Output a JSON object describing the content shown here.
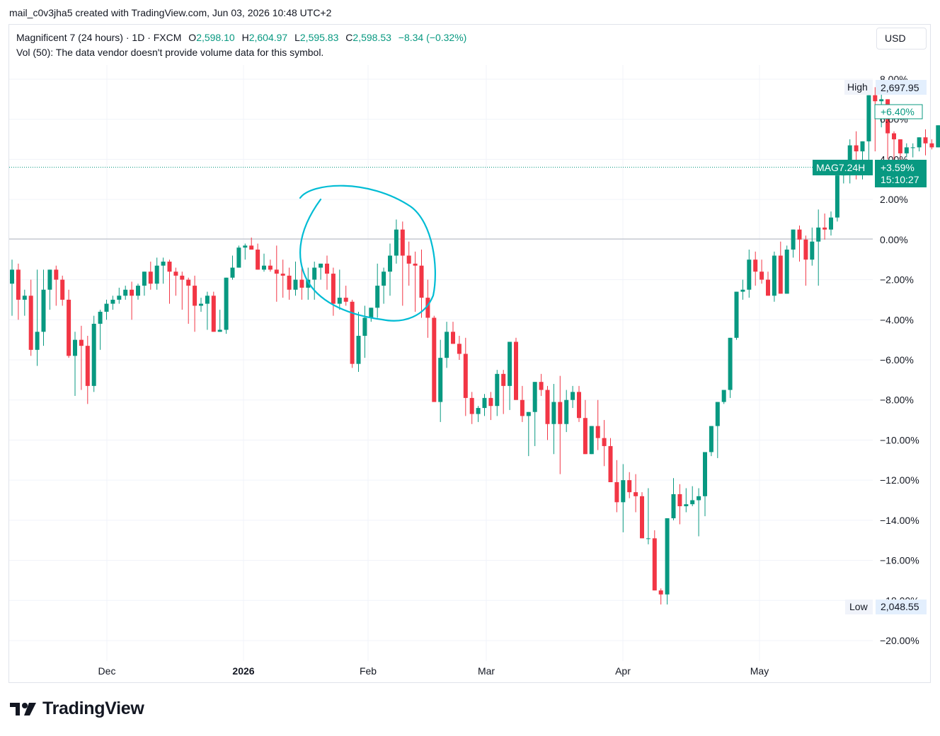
{
  "caption": "mail_c0v3jha5 created with TradingView.com, Jun 03, 2026 10:48 UTC+2",
  "symbol": {
    "title": "Magnificent 7 (24 hours) · 1D · FXCM",
    "open_key": "O",
    "open": "2,598.10",
    "high_key": "H",
    "high": "2,604.97",
    "low_key": "L",
    "low": "2,595.83",
    "close_key": "C",
    "close": "2,598.53",
    "change": "−8.34 (−0.32%)"
  },
  "volume_note": "Vol (50): The data vendor doesn't provide volume data for this symbol.",
  "currency_button": "USD",
  "brand": "TradingView",
  "colors": {
    "up": "#089981",
    "down": "#f23645",
    "annotation": "#00bcd4",
    "grid": "#f0f3fa",
    "axis_text": "#131722"
  },
  "markers": {
    "high_label": "High",
    "high_value": "2,697.95",
    "low_label": "Low",
    "low_value": "2,048.55",
    "change_badge": "+6.40%",
    "ticker": "MAG7.24H",
    "last_change": "+3.59%",
    "countdown": "15:10:27"
  },
  "chart_data": {
    "type": "candlestick",
    "y_axis_unit": "percent change from reference",
    "y_ticks": [
      "8.00%",
      "6.00%",
      "4.00%",
      "2.00%",
      "0.00%",
      "−2.00%",
      "−4.00%",
      "−6.00%",
      "−8.00%",
      "−10.00%",
      "−12.00%",
      "−14.00%",
      "−16.00%",
      "−18.00%",
      "−20.00%"
    ],
    "ylim": [
      -20,
      8
    ],
    "x_labels": [
      "Dec",
      "2026",
      "Feb",
      "Mar",
      "Apr",
      "May"
    ],
    "grid": true,
    "candles_pct": [
      [
        -2.2,
        -1.0,
        -3.8,
        -1.5
      ],
      [
        -1.5,
        -1.2,
        -4.0,
        -3.0
      ],
      [
        -3.0,
        -2.5,
        -3.8,
        -2.8
      ],
      [
        -2.8,
        -2.0,
        -5.8,
        -5.5
      ],
      [
        -5.5,
        -1.5,
        -6.3,
        -4.6
      ],
      [
        -4.6,
        -1.5,
        -5.3,
        -2.5
      ],
      [
        -2.5,
        -1.5,
        -3.5,
        -1.5
      ],
      [
        -1.5,
        -1.3,
        -3.3,
        -2.0
      ],
      [
        -2.0,
        -1.8,
        -3.3,
        -3.0
      ],
      [
        -3.0,
        -2.5,
        -5.9,
        -5.8
      ],
      [
        -5.8,
        -4.6,
        -7.8,
        -5.0
      ],
      [
        -5.0,
        -4.3,
        -7.5,
        -5.3
      ],
      [
        -5.3,
        -4.8,
        -8.2,
        -7.3
      ],
      [
        -7.3,
        -3.8,
        -7.6,
        -4.2
      ],
      [
        -4.2,
        -3.5,
        -5.5,
        -3.6
      ],
      [
        -3.6,
        -3.0,
        -4.0,
        -3.2
      ],
      [
        -3.2,
        -2.8,
        -3.5,
        -3.0
      ],
      [
        -3.0,
        -2.4,
        -3.2,
        -2.8
      ],
      [
        -2.8,
        -2.3,
        -3.0,
        -2.5
      ],
      [
        -2.5,
        -2.1,
        -4.0,
        -2.8
      ],
      [
        -2.8,
        -2.2,
        -3.0,
        -2.3
      ],
      [
        -2.3,
        -1.7,
        -2.8,
        -1.6
      ],
      [
        -1.6,
        -1.1,
        -2.5,
        -2.2
      ],
      [
        -2.2,
        -0.9,
        -2.5,
        -1.3
      ],
      [
        -1.3,
        -0.9,
        -2.2,
        -1.1
      ],
      [
        -1.1,
        -1.0,
        -3.2,
        -1.6
      ],
      [
        -1.6,
        -1.4,
        -2.8,
        -1.8
      ],
      [
        -1.8,
        -1.6,
        -3.5,
        -2.0
      ],
      [
        -2.0,
        -1.9,
        -4.2,
        -2.3
      ],
      [
        -2.3,
        -1.8,
        -4.6,
        -3.3
      ],
      [
        -3.3,
        -2.9,
        -3.6,
        -3.2
      ],
      [
        -3.2,
        -2.6,
        -4.5,
        -2.8
      ],
      [
        -2.8,
        -2.6,
        -4.6,
        -4.6
      ],
      [
        -4.6,
        -3.5,
        -4.6,
        -4.5
      ],
      [
        -4.5,
        -1.9,
        -4.7,
        -1.9
      ],
      [
        -1.9,
        -0.8,
        -2.0,
        -1.4
      ],
      [
        -1.4,
        -0.3,
        -1.4,
        -0.4
      ],
      [
        -0.4,
        -0.2,
        -1.0,
        -0.3
      ],
      [
        -0.3,
        0.1,
        -0.5,
        -0.5
      ],
      [
        -0.5,
        -0.2,
        -1.4,
        -1.5
      ],
      [
        -1.5,
        -0.7,
        -1.6,
        -1.3
      ],
      [
        -1.3,
        -1.0,
        -1.6,
        -1.5
      ],
      [
        -1.5,
        -0.3,
        -3.1,
        -1.7
      ],
      [
        -1.7,
        -1.0,
        -2.9,
        -1.8
      ],
      [
        -1.8,
        -1.4,
        -3.0,
        -2.5
      ],
      [
        -2.5,
        -1.1,
        -2.8,
        -2.0
      ],
      [
        -2.0,
        -1.3,
        -3.0,
        -2.4
      ],
      [
        -2.4,
        -1.4,
        -3.0,
        -2.0
      ],
      [
        -2.0,
        -1.1,
        -3.0,
        -1.4
      ],
      [
        -1.4,
        -1.2,
        -2.0,
        -1.2
      ],
      [
        -1.2,
        -0.8,
        -2.5,
        -1.7
      ],
      [
        -1.7,
        -1.4,
        -3.8,
        -3.2
      ],
      [
        -3.2,
        -1.5,
        -3.5,
        -2.9
      ],
      [
        -2.9,
        -2.3,
        -3.3,
        -3.1
      ],
      [
        -3.1,
        -3.0,
        -6.4,
        -6.2
      ],
      [
        -6.2,
        -3.6,
        -6.6,
        -4.8
      ],
      [
        -4.8,
        -3.3,
        -5.9,
        -3.9
      ],
      [
        -3.9,
        -3.4,
        -4.1,
        -3.4
      ],
      [
        -3.4,
        -1.2,
        -3.9,
        -2.3
      ],
      [
        -2.3,
        -1.4,
        -3.2,
        -1.6
      ],
      [
        -1.6,
        -0.2,
        -2.8,
        -0.8
      ],
      [
        -0.8,
        1.0,
        -1.2,
        0.5
      ],
      [
        0.5,
        0.9,
        -3.3,
        -0.8
      ],
      [
        -0.8,
        -0.1,
        -2.3,
        -1.2
      ],
      [
        -1.2,
        -0.6,
        -3.6,
        -1.3
      ],
      [
        -1.3,
        -0.5,
        -3.9,
        -2.9
      ],
      [
        -2.9,
        -2.0,
        -4.9,
        -3.9
      ],
      [
        -3.9,
        -3.8,
        -5.5,
        -8.1
      ],
      [
        -8.1,
        -5.0,
        -9.1,
        -5.9
      ],
      [
        -5.9,
        -4.1,
        -6.4,
        -4.6
      ],
      [
        -4.6,
        -4.1,
        -5.1,
        -5.2
      ],
      [
        -5.2,
        -4.8,
        -6.0,
        -5.7
      ],
      [
        -5.7,
        -4.9,
        -8.8,
        -7.9
      ],
      [
        -7.9,
        -7.6,
        -9.2,
        -8.7
      ],
      [
        -8.7,
        -8.3,
        -9.1,
        -8.4
      ],
      [
        -8.4,
        -7.7,
        -8.8,
        -7.9
      ],
      [
        -7.9,
        -7.6,
        -9.0,
        -8.3
      ],
      [
        -8.3,
        -6.5,
        -8.8,
        -6.7
      ],
      [
        -6.7,
        -6.5,
        -8.7,
        -7.3
      ],
      [
        -7.3,
        -6.0,
        -8.5,
        -5.1
      ],
      [
        -5.1,
        -4.9,
        -7.0,
        -8.0
      ],
      [
        -8.0,
        -7.3,
        -9.1,
        -8.8
      ],
      [
        -8.8,
        -8.6,
        -10.8,
        -8.6
      ],
      [
        -8.6,
        -7.4,
        -10.3,
        -7.1
      ],
      [
        -7.1,
        -6.7,
        -7.8,
        -7.5
      ],
      [
        -7.5,
        -7.3,
        -10.0,
        -9.2
      ],
      [
        -9.2,
        -7.2,
        -10.7,
        -8.1
      ],
      [
        -8.1,
        -6.8,
        -11.7,
        -9.2
      ],
      [
        -9.2,
        -7.5,
        -9.6,
        -8.0
      ],
      [
        -8.0,
        -7.3,
        -8.4,
        -7.6
      ],
      [
        -7.6,
        -7.3,
        -9.1,
        -8.9
      ],
      [
        -8.9,
        -8.0,
        -10.7,
        -10.7
      ],
      [
        -10.7,
        -9.5,
        -10.7,
        -9.3
      ],
      [
        -9.3,
        -8.0,
        -10.5,
        -9.9
      ],
      [
        -9.9,
        -9.0,
        -11.3,
        -10.3
      ],
      [
        -10.3,
        -9.9,
        -11.8,
        -12.1
      ],
      [
        -12.1,
        -11.0,
        -13.6,
        -13.1
      ],
      [
        -13.1,
        -11.2,
        -14.6,
        -12.0
      ],
      [
        -12.0,
        -11.6,
        -12.9,
        -12.6
      ],
      [
        -12.6,
        -11.7,
        -13.6,
        -12.8
      ],
      [
        -12.8,
        -12.6,
        -14.0,
        -14.9
      ],
      [
        -14.9,
        -12.4,
        -15.2,
        -14.9
      ],
      [
        -14.9,
        -14.5,
        -17.5,
        -17.5
      ],
      [
        -17.5,
        -17.4,
        -18.2,
        -17.7
      ],
      [
        -17.7,
        -13.9,
        -18.2,
        -13.9
      ],
      [
        -13.9,
        -11.9,
        -14.0,
        -12.7
      ],
      [
        -12.7,
        -12.2,
        -14.2,
        -13.3
      ],
      [
        -13.3,
        -12.4,
        -13.6,
        -13.2
      ],
      [
        -13.2,
        -12.3,
        -13.3,
        -13.0
      ],
      [
        -13.0,
        -12.4,
        -14.8,
        -12.8
      ],
      [
        -12.8,
        -10.8,
        -13.8,
        -10.6
      ],
      [
        -10.6,
        -9.3,
        -10.8,
        -9.3
      ],
      [
        -9.3,
        -8.3,
        -10.9,
        -8.1
      ],
      [
        -8.1,
        -7.5,
        -8.2,
        -7.5
      ],
      [
        -7.5,
        -6.4,
        -7.9,
        -4.9
      ],
      [
        -4.9,
        -2.6,
        -5.0,
        -2.6
      ],
      [
        -2.6,
        -2.0,
        -3.0,
        -2.5
      ],
      [
        -2.5,
        -0.5,
        -2.9,
        -1.0
      ],
      [
        -1.0,
        -0.6,
        -2.3,
        -1.6
      ],
      [
        -1.6,
        -1.0,
        -2.2,
        -2.0
      ],
      [
        -2.0,
        -1.6,
        -2.2,
        -2.8
      ],
      [
        -2.8,
        -0.6,
        -3.1,
        -0.8
      ],
      [
        -0.8,
        -0.1,
        -2.6,
        -2.7
      ],
      [
        -2.7,
        -0.3,
        -2.7,
        -0.5
      ],
      [
        -0.5,
        0.5,
        -0.9,
        0.5
      ],
      [
        0.5,
        0.7,
        -1.1,
        0.0
      ],
      [
        0.0,
        0.2,
        -2.3,
        -1.0
      ],
      [
        -1.0,
        0.6,
        -1.3,
        -0.1
      ],
      [
        -0.1,
        1.5,
        -2.3,
        0.6
      ],
      [
        0.6,
        1.3,
        0.0,
        0.5
      ],
      [
        0.5,
        1.4,
        0.2,
        1.1
      ],
      [
        1.1,
        3.2,
        0.9,
        3.2
      ],
      [
        3.2,
        3.8,
        2.8,
        3.8
      ],
      [
        3.8,
        5.0,
        2.8,
        4.7
      ],
      [
        4.7,
        5.4,
        3.0,
        4.4
      ],
      [
        4.4,
        4.8,
        3.0,
        4.9
      ],
      [
        4.9,
        5.0,
        3.2,
        7.2
      ],
      [
        7.2,
        7.6,
        4.4,
        6.9
      ],
      [
        6.9,
        7.3,
        5.6,
        7.0
      ],
      [
        7.0,
        7.0,
        4.0,
        5.3
      ],
      [
        5.3,
        5.4,
        3.5,
        5.0
      ],
      [
        5.0,
        5.0,
        2.9,
        4.3
      ],
      [
        4.3,
        4.8,
        4.1,
        4.6
      ],
      [
        4.6,
        4.8,
        4.1,
        4.6
      ],
      [
        4.6,
        5.0,
        4.4,
        5.1
      ],
      [
        5.1,
        5.5,
        4.2,
        4.8
      ],
      [
        4.8,
        5.0,
        4.5,
        4.6
      ],
      [
        4.6,
        5.4,
        4.8,
        5.7
      ],
      [
        5.7,
        6.7,
        5.0,
        6.7
      ]
    ]
  }
}
